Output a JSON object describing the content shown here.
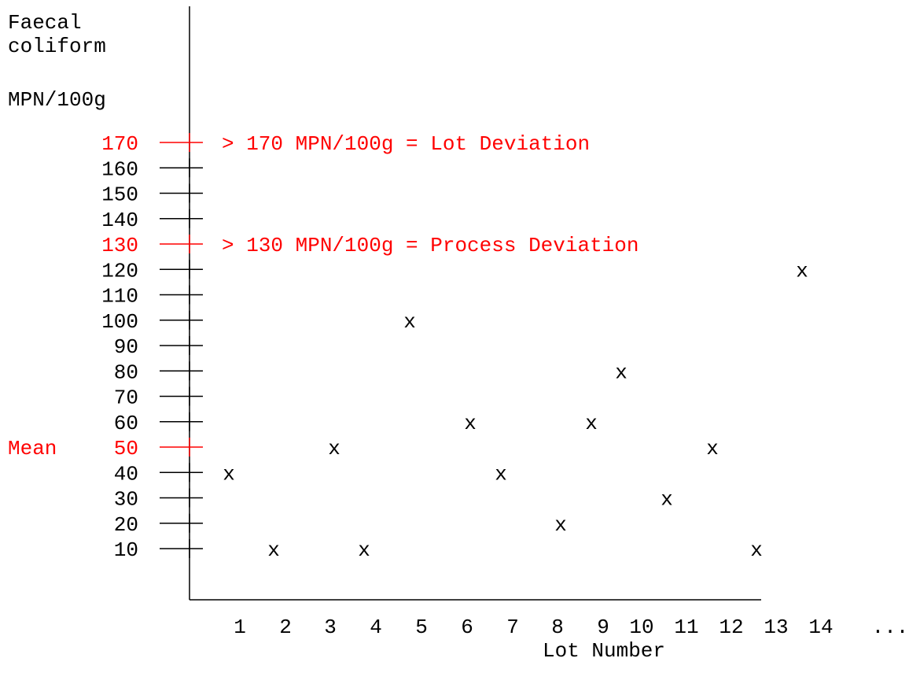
{
  "chart_data": {
    "type": "scatter",
    "ylabel_lines": [
      "Faecal",
      "coliform",
      "",
      "MPN/100g"
    ],
    "xlabel": "Lot Number",
    "y_ticks": [
      170,
      160,
      150,
      140,
      130,
      120,
      110,
      100,
      90,
      80,
      70,
      60,
      50,
      40,
      30,
      20,
      10
    ],
    "x_ticks": [
      "1",
      "2",
      "3",
      "4",
      "5",
      "6",
      "7",
      "8",
      "9",
      "10",
      "11",
      "12",
      "13",
      "14"
    ],
    "x_continuation": "...",
    "marker": "x",
    "points": [
      {
        "lot": 1,
        "value": 40
      },
      {
        "lot": 2,
        "value": 10
      },
      {
        "lot": 3,
        "value": 50
      },
      {
        "lot": 4,
        "value": 10
      },
      {
        "lot": 5,
        "value": 100
      },
      {
        "lot": 6,
        "value": 60
      },
      {
        "lot": 7,
        "value": 40
      },
      {
        "lot": 8,
        "value": 20
      },
      {
        "lot": 9,
        "value": 60
      },
      {
        "lot": 10,
        "value": 80
      },
      {
        "lot": 11,
        "value": 30
      },
      {
        "lot": 12,
        "value": 50
      },
      {
        "lot": 13,
        "value": 10
      },
      {
        "lot": 14,
        "value": 120
      }
    ],
    "thresholds": [
      {
        "value": 170,
        "label": "> 170 MPN/100g = Lot Deviation"
      },
      {
        "value": 130,
        "label": "> 130 MPN/100g = Process Deviation"
      }
    ],
    "mean": {
      "value": 50,
      "label": "Mean"
    },
    "colors": {
      "text": "#000000",
      "highlight": "#ff0000"
    },
    "ylim": [
      10,
      170
    ]
  }
}
